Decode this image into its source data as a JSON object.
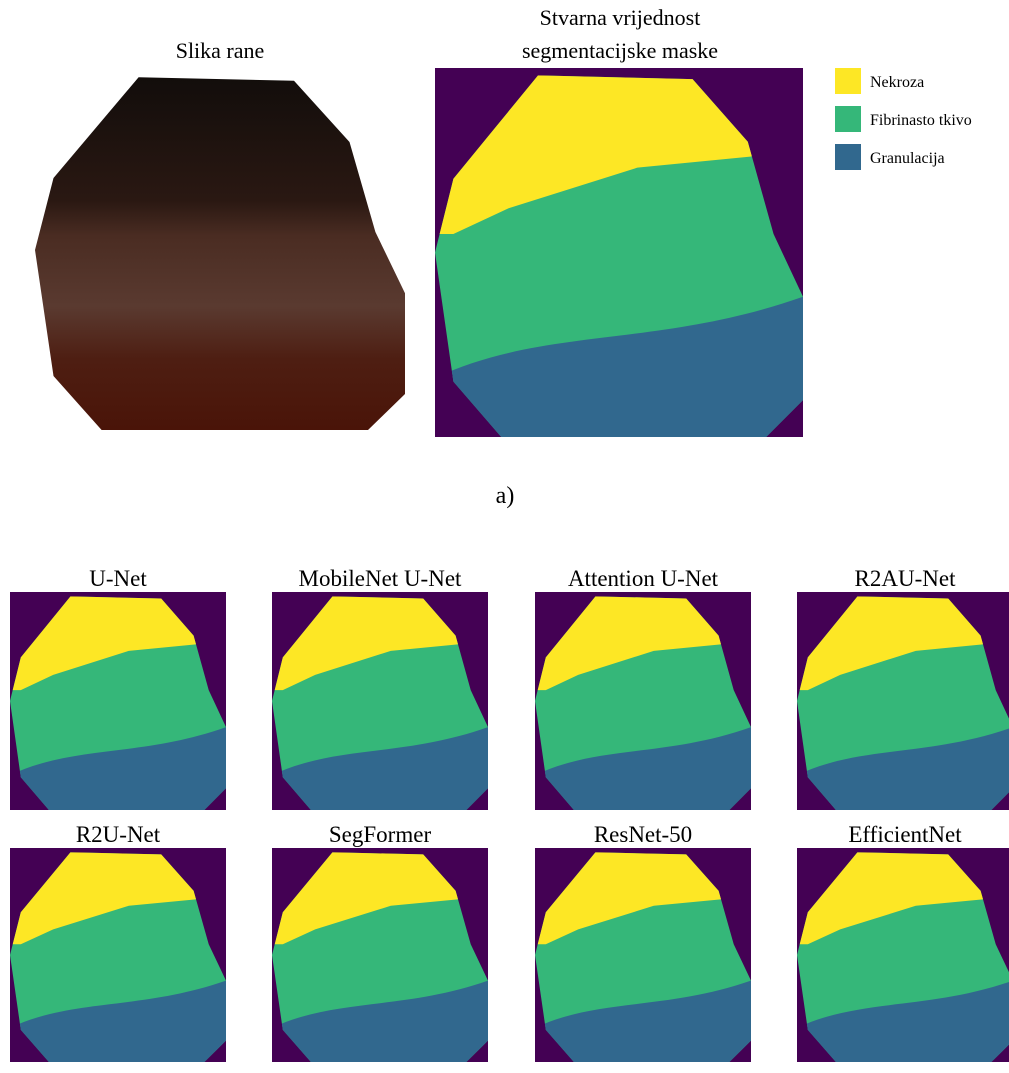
{
  "panel_a": {
    "wound_title": "Slika rane",
    "mask_title_lines": [
      "Stvarna vrijednost",
      "segmentacijske maske"
    ],
    "caption": "a)"
  },
  "legend": [
    "Nekroza",
    "Fibrinasto tkivo",
    "Granulacija"
  ],
  "models": [
    "U-Net",
    "MobileNet U-Net",
    "Attention U-Net",
    "R2AU-Net",
    "R2U-Net",
    "SegFormer",
    "ResNet-50",
    "EfficientNet"
  ]
}
